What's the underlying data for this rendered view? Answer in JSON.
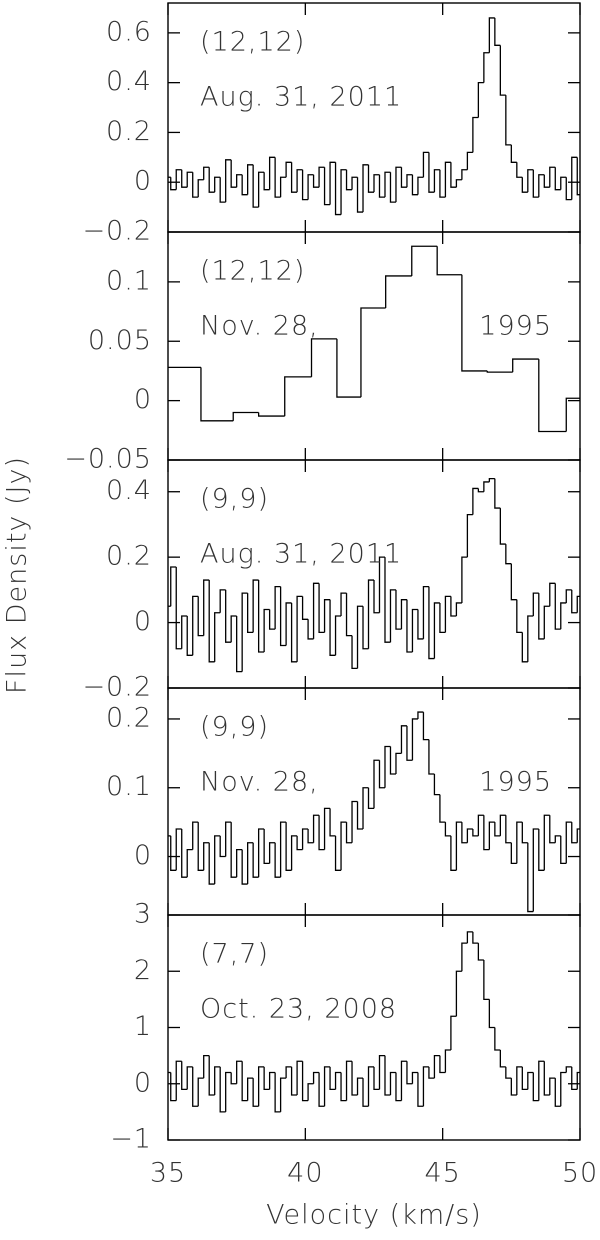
{
  "chart_data": [
    {
      "type": "step",
      "annotations": [
        "(12,12)",
        "Aug. 31, 2011"
      ],
      "xlim": [
        35,
        50
      ],
      "xticks": [
        35,
        40,
        45,
        50
      ],
      "ylim": [
        -0.2,
        0.72
      ],
      "yticks": [
        {
          "value": -0.2,
          "label": "−0.2"
        },
        0,
        0.2,
        0.4,
        0.6
      ],
      "color": "#000000",
      "x": [
        35.0,
        35.2,
        35.4,
        35.6,
        35.8,
        36.0,
        36.2,
        36.4,
        36.6,
        36.8,
        37.0,
        37.2,
        37.4,
        37.6,
        37.8,
        38.0,
        38.2,
        38.4,
        38.6,
        38.8,
        39.0,
        39.2,
        39.4,
        39.6,
        39.8,
        40.0,
        40.2,
        40.4,
        40.6,
        40.8,
        41.0,
        41.2,
        41.4,
        41.6,
        41.8,
        42.0,
        42.2,
        42.4,
        42.6,
        42.8,
        43.0,
        43.2,
        43.4,
        43.6,
        43.8,
        44.0,
        44.2,
        44.4,
        44.6,
        44.8,
        45.0,
        45.2,
        45.4,
        45.6,
        45.8,
        46.0,
        46.2,
        46.4,
        46.6,
        46.8,
        47.0,
        47.2,
        47.4,
        47.6,
        47.8,
        48.0,
        48.2,
        48.4,
        48.6,
        48.8,
        49.0,
        49.2,
        49.4,
        49.6,
        49.8,
        50.0
      ],
      "values": [
        0.02,
        -0.03,
        0.05,
        -0.02,
        0.04,
        -0.06,
        0.01,
        0.06,
        -0.04,
        0.02,
        -0.08,
        0.09,
        -0.02,
        0.03,
        -0.05,
        0.07,
        -0.1,
        0.04,
        -0.03,
        0.1,
        -0.06,
        0.02,
        0.08,
        -0.04,
        0.05,
        -0.07,
        0.03,
        -0.02,
        0.06,
        -0.09,
        0.08,
        -0.13,
        0.05,
        -0.03,
        0.02,
        -0.12,
        0.07,
        -0.04,
        0.03,
        -0.06,
        0.04,
        -0.08,
        0.06,
        -0.02,
        0.03,
        -0.05,
        0.02,
        0.12,
        -0.04,
        0.05,
        -0.06,
        0.08,
        -0.02,
        0.01,
        0.05,
        0.12,
        0.26,
        0.4,
        0.52,
        0.66,
        0.55,
        0.35,
        0.15,
        0.08,
        0.02,
        -0.04,
        0.05,
        -0.06,
        0.03,
        -0.02,
        0.06,
        -0.03,
        0.02,
        -0.07,
        0.1,
        -0.05
      ]
    },
    {
      "type": "step",
      "annotations": [
        "(12,12)",
        "Nov. 28,",
        "1995"
      ],
      "xlim": [
        35,
        50
      ],
      "xticks": [
        35,
        40,
        45,
        50
      ],
      "ylim": [
        -0.05,
        0.142
      ],
      "yticks": [
        {
          "value": -0.05,
          "label": "−0.05"
        },
        0,
        0.05,
        0.1
      ],
      "color": "#000000",
      "x": [
        35.5,
        36.9,
        37.85,
        38.75,
        39.75,
        40.7,
        41.6,
        42.45,
        43.4,
        44.35,
        45.25,
        46.15,
        47.1,
        48.0,
        49.0,
        50.0
      ],
      "values": [
        0.028,
        -0.017,
        -0.01,
        -0.013,
        0.02,
        0.052,
        0.003,
        0.078,
        0.105,
        0.13,
        0.106,
        0.025,
        0.024,
        0.035,
        -0.026,
        0.002
      ]
    },
    {
      "type": "step",
      "annotations": [
        "(9,9)",
        "Aug. 31, 2011"
      ],
      "ylabel": "Flux Density (Jy)",
      "xlim": [
        35,
        50
      ],
      "xticks": [
        35,
        40,
        45,
        50
      ],
      "ylim": [
        -0.2,
        0.497
      ],
      "yticks": [
        {
          "value": -0.2,
          "label": "−0.2"
        },
        0,
        0.2,
        0.4
      ],
      "color": "#000000",
      "x": [
        35.0,
        35.2,
        35.4,
        35.6,
        35.8,
        36.0,
        36.2,
        36.4,
        36.6,
        36.8,
        37.0,
        37.2,
        37.4,
        37.6,
        37.8,
        38.0,
        38.2,
        38.4,
        38.6,
        38.8,
        39.0,
        39.2,
        39.4,
        39.6,
        39.8,
        40.0,
        40.2,
        40.4,
        40.6,
        40.8,
        41.0,
        41.2,
        41.4,
        41.6,
        41.8,
        42.0,
        42.2,
        42.4,
        42.6,
        42.8,
        43.0,
        43.2,
        43.4,
        43.6,
        43.8,
        44.0,
        44.2,
        44.4,
        44.6,
        44.8,
        45.0,
        45.2,
        45.4,
        45.6,
        45.8,
        46.0,
        46.2,
        46.4,
        46.6,
        46.8,
        47.0,
        47.2,
        47.4,
        47.6,
        47.8,
        48.0,
        48.2,
        48.4,
        48.6,
        48.8,
        49.0,
        49.2,
        49.4,
        49.6,
        49.8,
        50.0
      ],
      "values": [
        0.05,
        0.17,
        -0.08,
        0.02,
        -0.1,
        0.08,
        -0.04,
        0.13,
        -0.12,
        0.03,
        0.1,
        -0.06,
        0.02,
        -0.15,
        0.09,
        -0.03,
        0.13,
        -0.09,
        0.04,
        -0.02,
        0.11,
        -0.07,
        0.06,
        -0.12,
        0.08,
        0.01,
        -0.05,
        0.12,
        -0.03,
        0.07,
        -0.1,
        0.02,
        0.09,
        -0.04,
        -0.14,
        0.05,
        -0.08,
        0.13,
        0.03,
        0.2,
        -0.06,
        0.1,
        -0.02,
        0.07,
        -0.09,
        0.04,
        -0.05,
        0.11,
        -0.11,
        0.06,
        -0.03,
        0.08,
        0.02,
        0.06,
        0.2,
        0.33,
        0.41,
        0.4,
        0.43,
        0.44,
        0.35,
        0.24,
        0.18,
        0.07,
        -0.03,
        -0.12,
        0.02,
        0.09,
        -0.05,
        0.05,
        0.12,
        -0.02,
        0.06,
        0.1,
        0.03,
        0.08
      ]
    },
    {
      "type": "step",
      "annotations": [
        "(9,9)",
        "Nov. 28,",
        "1995"
      ],
      "xlim": [
        35,
        50
      ],
      "xticks": [
        35,
        40,
        45,
        50
      ],
      "ylim": [
        -0.085,
        0.245
      ],
      "yticks": [
        0,
        0.1,
        0.2
      ],
      "color": "#000000",
      "x": [
        35.0,
        35.2,
        35.4,
        35.6,
        35.8,
        36.0,
        36.2,
        36.4,
        36.6,
        36.8,
        37.0,
        37.2,
        37.4,
        37.6,
        37.8,
        38.0,
        38.2,
        38.4,
        38.6,
        38.8,
        39.0,
        39.2,
        39.4,
        39.6,
        39.8,
        40.0,
        40.2,
        40.4,
        40.6,
        40.8,
        41.0,
        41.2,
        41.4,
        41.6,
        41.8,
        42.0,
        42.2,
        42.4,
        42.6,
        42.8,
        43.0,
        43.2,
        43.4,
        43.6,
        43.8,
        44.0,
        44.2,
        44.4,
        44.6,
        44.8,
        45.0,
        45.2,
        45.4,
        45.6,
        45.8,
        46.0,
        46.2,
        46.4,
        46.6,
        46.8,
        47.0,
        47.2,
        47.4,
        47.6,
        47.8,
        48.0,
        48.2,
        48.4,
        48.6,
        48.8,
        49.0,
        49.2,
        49.4,
        49.6,
        49.8,
        50.0
      ],
      "values": [
        0.03,
        -0.02,
        0.04,
        -0.03,
        0.01,
        0.05,
        -0.02,
        0.02,
        -0.04,
        0.03,
        0,
        0.05,
        -0.03,
        0.01,
        -0.04,
        0.02,
        -0.03,
        0.04,
        -0.01,
        0.02,
        -0.03,
        0.05,
        -0.02,
        0.03,
        0.01,
        0.04,
        0.02,
        0.06,
        0.01,
        0.07,
        0.03,
        -0.02,
        0.05,
        0.02,
        0.08,
        0.04,
        0.1,
        0.07,
        0.14,
        0.1,
        0.16,
        0.12,
        0.15,
        0.19,
        0.14,
        0.2,
        0.21,
        0.17,
        0.12,
        0.09,
        0.05,
        0.03,
        -0.02,
        0.05,
        0.02,
        0.04,
        0.03,
        0.06,
        0.01,
        0.05,
        0.03,
        0.06,
        0.02,
        -0.01,
        0.05,
        0.02,
        -0.08,
        0.04,
        -0.02,
        0.06,
        0.02,
        0.03,
        -0.01,
        0.05,
        0.02,
        0.04
      ]
    },
    {
      "type": "step",
      "annotations": [
        "(7,7)",
        "Oct. 23, 2008"
      ],
      "xlabel": "Velocity (km/s)",
      "xlim": [
        35,
        50
      ],
      "xticks": [
        35,
        40,
        45,
        50
      ],
      "ylim": [
        -1,
        3
      ],
      "yticks": [
        {
          "value": -1,
          "label": "−1"
        },
        0,
        1,
        2,
        3
      ],
      "color": "#000000",
      "x": [
        35.0,
        35.2,
        35.4,
        35.6,
        35.8,
        36.0,
        36.2,
        36.4,
        36.6,
        36.8,
        37.0,
        37.2,
        37.4,
        37.6,
        37.8,
        38.0,
        38.2,
        38.4,
        38.6,
        38.8,
        39.0,
        39.2,
        39.4,
        39.6,
        39.8,
        40.0,
        40.2,
        40.4,
        40.6,
        40.8,
        41.0,
        41.2,
        41.4,
        41.6,
        41.8,
        42.0,
        42.2,
        42.4,
        42.6,
        42.8,
        43.0,
        43.2,
        43.4,
        43.6,
        43.8,
        44.0,
        44.2,
        44.4,
        44.6,
        44.8,
        45.0,
        45.2,
        45.4,
        45.6,
        45.8,
        46.0,
        46.2,
        46.4,
        46.6,
        46.8,
        47.0,
        47.2,
        47.4,
        47.6,
        47.8,
        48.0,
        48.2,
        48.4,
        48.6,
        48.8,
        49.0,
        49.2,
        49.4,
        49.6,
        49.8,
        50.0
      ],
      "values": [
        0.2,
        -0.3,
        0.4,
        -0.1,
        0.3,
        -0.4,
        0.1,
        0.5,
        -0.2,
        0.3,
        -0.5,
        0.2,
        0,
        0.4,
        -0.3,
        0.1,
        -0.4,
        0.3,
        -0.1,
        0.2,
        -0.5,
        0.1,
        0.3,
        -0.2,
        0.4,
        -0.3,
        0,
        0.2,
        -0.4,
        0.3,
        -0.1,
        0.2,
        -0.3,
        0.4,
        -0.2,
        0.1,
        -0.4,
        0.3,
        -0.1,
        0.5,
        -0.2,
        0.2,
        -0.3,
        0.4,
        0,
        0.2,
        -0.4,
        0.3,
        0.1,
        0.5,
        0.2,
        0.6,
        1.2,
        2.0,
        2.5,
        2.7,
        2.5,
        2.2,
        1.5,
        1.0,
        0.6,
        0.3,
        0.1,
        -0.2,
        0.3,
        -0.1,
        0.2,
        -0.3,
        0.4,
        -0.2,
        0.1,
        -0.4,
        0.2,
        0.3,
        -0.1,
        0.2
      ]
    }
  ]
}
